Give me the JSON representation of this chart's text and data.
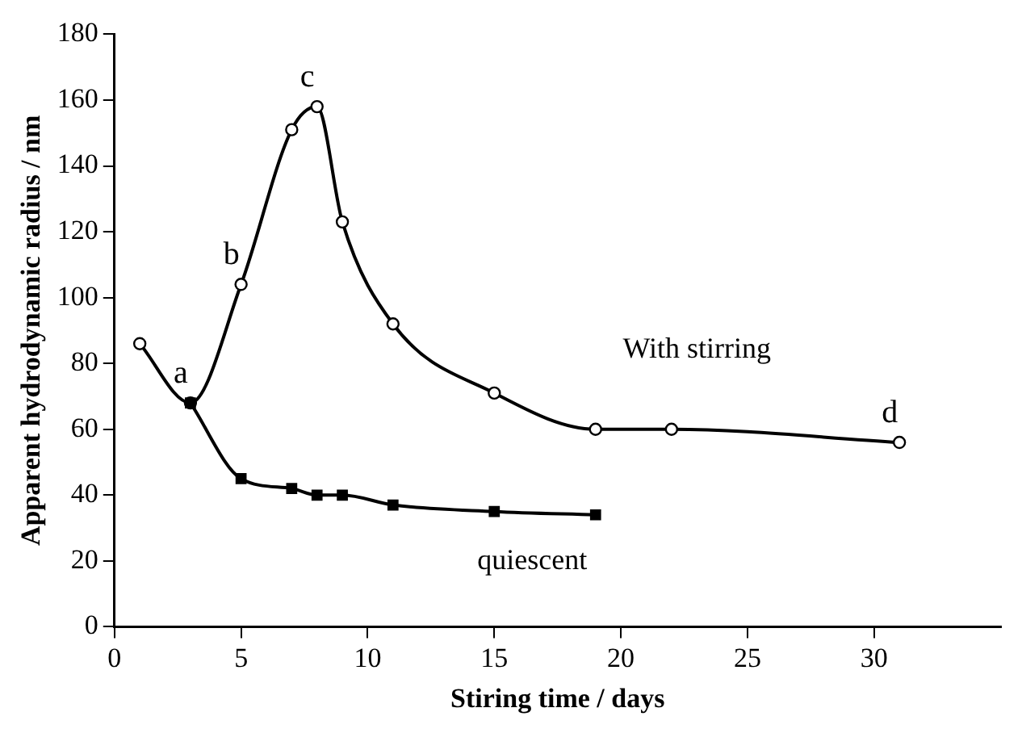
{
  "chart_data": {
    "type": "line",
    "xlabel": "Stiring time / days",
    "ylabel": "Apparent hydrodynamic radius / nm",
    "xlim": [
      0,
      35
    ],
    "xticks": [
      0,
      5,
      10,
      15,
      20,
      25,
      30
    ],
    "ylim": [
      0,
      180
    ],
    "yticks": [
      0,
      20,
      40,
      60,
      80,
      100,
      120,
      140,
      160,
      180
    ],
    "grid": false,
    "legend": false,
    "series": [
      {
        "name": "With stirring",
        "color": "#000000",
        "marker": "circle",
        "x": [
          1,
          3,
          5,
          7,
          8,
          9,
          11,
          15,
          19,
          22,
          31
        ],
        "values": [
          86,
          68,
          104,
          151,
          158,
          123,
          92,
          71,
          60,
          60,
          56
        ]
      },
      {
        "name": "quiescent",
        "color": "#000000",
        "marker": "square",
        "x": [
          3,
          5,
          7,
          8,
          9,
          11,
          15,
          19
        ],
        "values": [
          68,
          45,
          42,
          40,
          40,
          37,
          35,
          34
        ]
      }
    ],
    "annotations": [
      {
        "text": "a",
        "x": 3,
        "y": 68
      },
      {
        "text": "b",
        "x": 5,
        "y": 104
      },
      {
        "text": "c",
        "x": 8,
        "y": 158
      },
      {
        "text": "d",
        "x": 31,
        "y": 56
      }
    ]
  }
}
